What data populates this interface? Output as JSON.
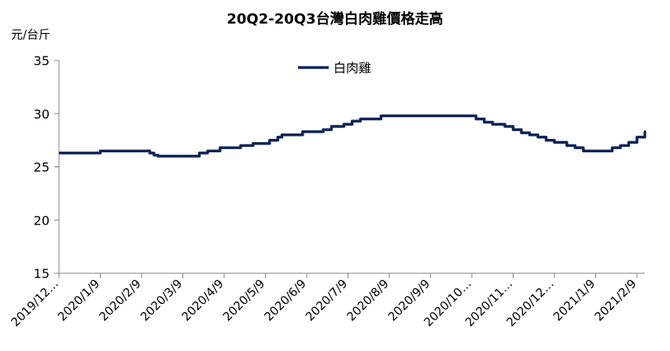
{
  "title": "20Q2-20Q3台灣白肉雞價格走高",
  "unit": "元/台斤",
  "chart_data": {
    "type": "line",
    "title": "20Q2-20Q3台灣白肉雞價格走高",
    "ylabel": "元/台斤",
    "ylim": [
      15,
      35
    ],
    "yticks": [
      15,
      20,
      25,
      30,
      35
    ],
    "grid": false,
    "legend_position": "top-center",
    "categories": [
      "2019/12…",
      "2020/1/9",
      "2020/2/9",
      "2020/3/9",
      "2020/4/9",
      "2020/5/9",
      "2020/6/9",
      "2020/7/9",
      "2020/8/9",
      "2020/9/9",
      "2020/10…",
      "2020/11…",
      "2020/12…",
      "2021/1/9",
      "2021/2/9"
    ],
    "series": [
      {
        "name": "白肉雞",
        "color": "#0f2557",
        "x": [
          0,
          1.0,
          2.0,
          2.2,
          2.3,
          2.4,
          3.0,
          3.2,
          3.4,
          3.6,
          3.9,
          4.2,
          4.4,
          4.7,
          5.1,
          5.3,
          5.4,
          5.6,
          5.9,
          6.2,
          6.4,
          6.6,
          6.9,
          7.1,
          7.3,
          7.6,
          7.8,
          8.0,
          8.5,
          9.0,
          9.5,
          9.9,
          10.1,
          10.3,
          10.5,
          10.8,
          11.0,
          11.2,
          11.4,
          11.6,
          11.8,
          12.0,
          12.2,
          12.3,
          12.5,
          12.7,
          13.0,
          13.2,
          13.4,
          13.6,
          13.8,
          14.0,
          14.2
        ],
        "values": [
          26.3,
          26.5,
          26.5,
          26.3,
          26.1,
          26.0,
          26.0,
          26.0,
          26.3,
          26.5,
          26.8,
          26.8,
          27.0,
          27.2,
          27.5,
          27.8,
          28.0,
          28.0,
          28.3,
          28.3,
          28.5,
          28.8,
          29.0,
          29.3,
          29.5,
          29.5,
          29.8,
          29.8,
          29.8,
          29.8,
          29.8,
          29.8,
          29.5,
          29.2,
          29.0,
          28.8,
          28.5,
          28.2,
          28.0,
          27.8,
          27.5,
          27.3,
          27.3,
          27.0,
          26.8,
          26.5,
          26.5,
          26.5,
          26.8,
          27.0,
          27.3,
          27.8,
          28.3
        ]
      }
    ]
  }
}
